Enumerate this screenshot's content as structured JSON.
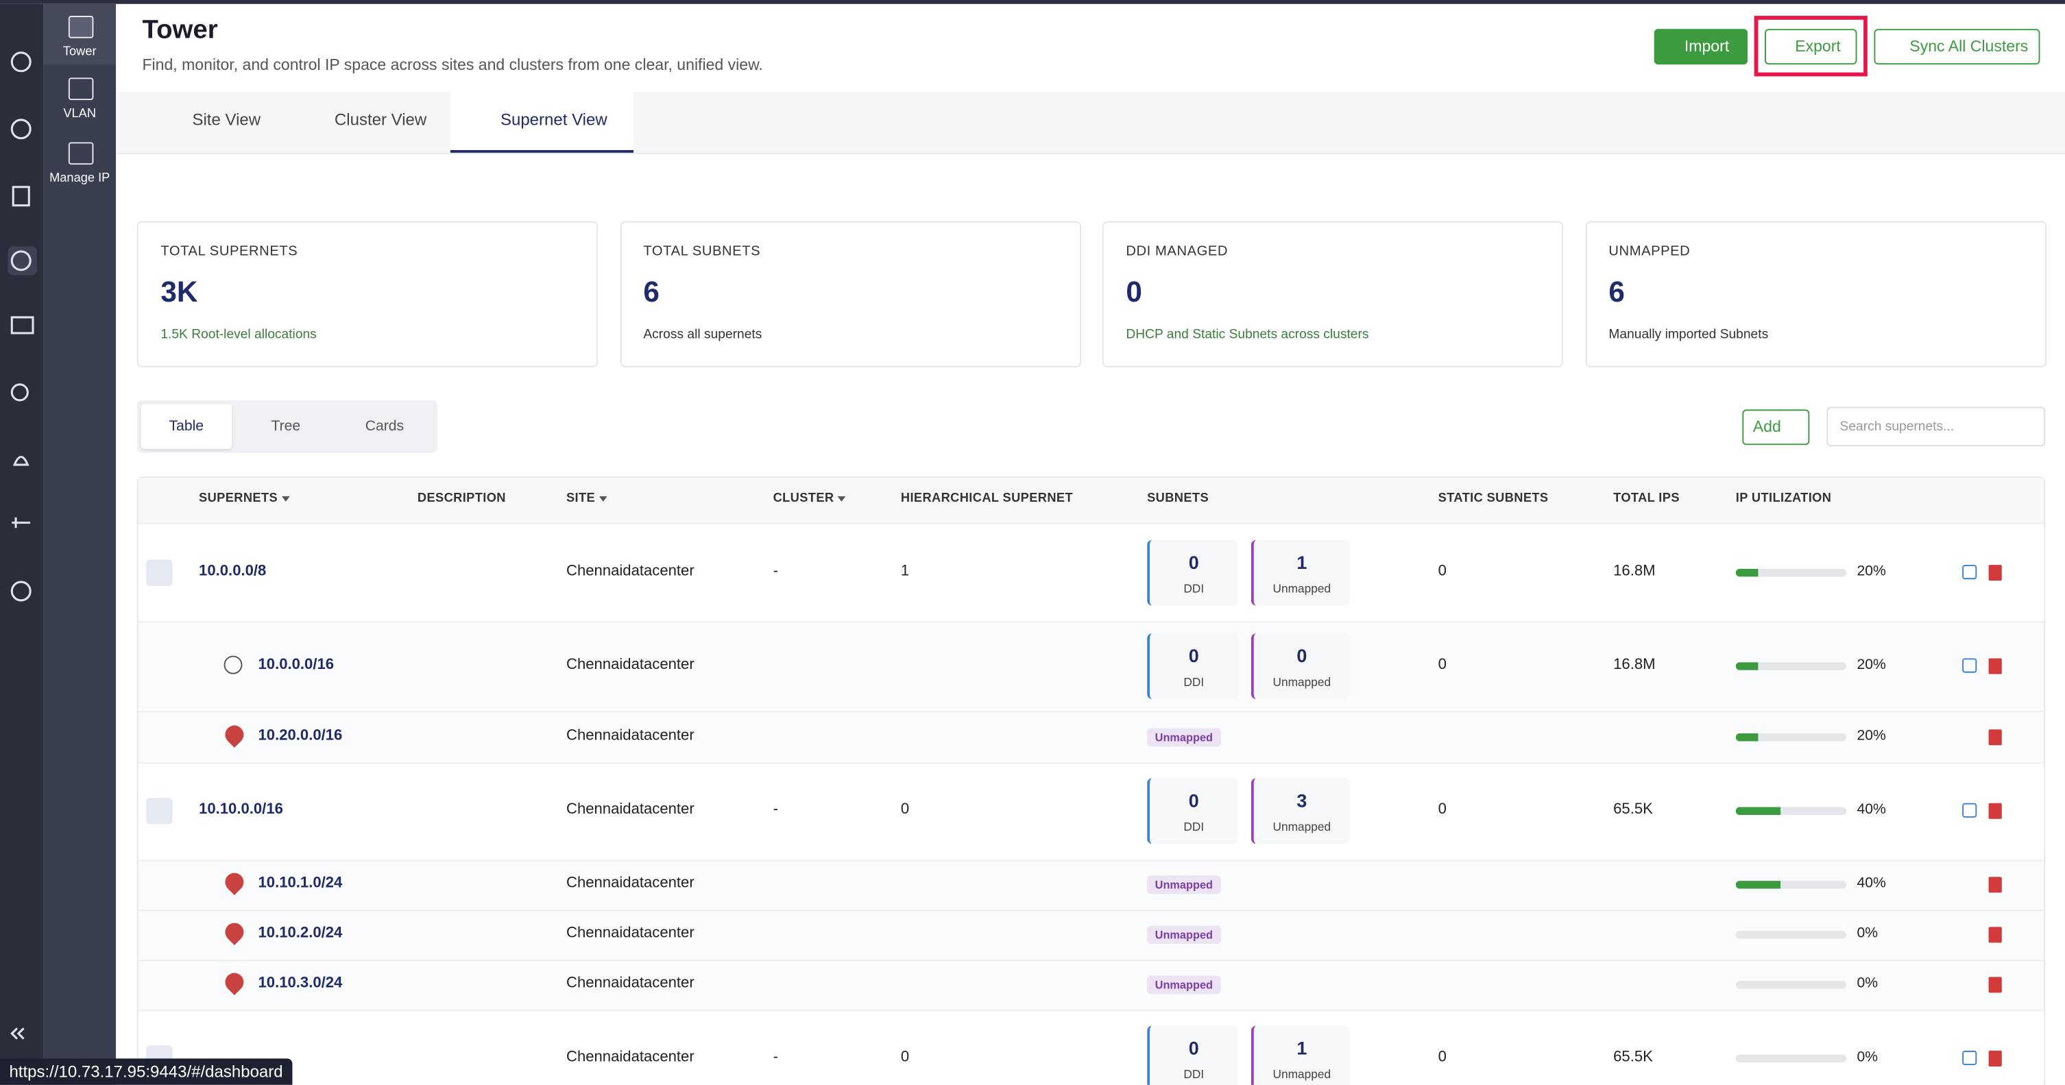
{
  "sidebar": {
    "items": [
      "Tower",
      "VLAN",
      "Manage IP"
    ]
  },
  "header": {
    "title": "Tower",
    "subtitle": "Find, monitor, and control IP space across sites and clusters from one clear, unified view.",
    "buttons": [
      "Import",
      "Export",
      "Sync All Clusters"
    ]
  },
  "tabs": [
    "Site View",
    "Cluster View",
    "Supernet View"
  ],
  "stats": [
    {
      "label": "TOTAL SUPERNETS",
      "value": "3K",
      "note": "1.5K Root-level allocations"
    },
    {
      "label": "TOTAL SUBNETS",
      "value": "6",
      "note": "Across all supernets"
    },
    {
      "label": "DDI MANAGED",
      "value": "0",
      "note": "DHCP and Static Subnets across clusters"
    },
    {
      "label": "UNMAPPED",
      "value": "6",
      "note": "Manually imported Subnets"
    }
  ],
  "view_toggle": [
    "Table",
    "Tree",
    "Cards"
  ],
  "add_button": "Add",
  "search_placeholder": "Search supernets...",
  "table": {
    "columns": [
      "SUPERNETS",
      "DESCRIPTION",
      "SITE",
      "CLUSTER",
      "HIERARCHICAL SUPERNET",
      "SUBNETS",
      "STATIC SUBNETS",
      "TOTAL IPS",
      "IP UTILIZATION"
    ],
    "rows": [
      {
        "kind": "parent",
        "name": "10.0.0.0/8",
        "site": "Chennaidatacenter",
        "cluster": "-",
        "hierarchical": "1",
        "ddi": "0",
        "ddi_label": "DDI",
        "unmapped": "1",
        "unmapped_label": "Unmapped",
        "static": "0",
        "total": "16.8M",
        "utilization": "20%"
      },
      {
        "kind": "child",
        "name": "10.0.0.0/16",
        "site": "Chennaidatacenter",
        "ddi": "0",
        "ddi_label": "DDI",
        "unmapped": "0",
        "unmapped_label": "Unmapped",
        "static": "0",
        "total": "16.8M",
        "utilization": "20%"
      },
      {
        "kind": "ip",
        "name": "10.20.0.0/16",
        "site": "Chennaidatacenter",
        "badge": "Unmapped",
        "utilization": "20%"
      },
      {
        "kind": "parent",
        "name": "10.10.0.0/16",
        "site": "Chennaidatacenter",
        "cluster": "-",
        "hierarchical": "0",
        "ddi": "0",
        "ddi_label": "DDI",
        "unmapped": "3",
        "unmapped_label": "Unmapped",
        "static": "0",
        "total": "65.5K",
        "utilization": "40%"
      },
      {
        "kind": "ip",
        "name": "10.10.1.0/24",
        "site": "Chennaidatacenter",
        "badge": "Unmapped",
        "utilization": "40%"
      },
      {
        "kind": "ip",
        "name": "10.10.2.0/24",
        "site": "Chennaidatacenter",
        "badge": "Unmapped",
        "utilization": "0%"
      },
      {
        "kind": "ip",
        "name": "10.10.3.0/24",
        "site": "Chennaidatacenter",
        "badge": "Unmapped",
        "utilization": "0%"
      },
      {
        "kind": "parent",
        "site": "Chennaidatacenter",
        "cluster": "-",
        "hierarchical": "0",
        "ddi": "0",
        "ddi_label": "DDI",
        "unmapped": "1",
        "unmapped_label": "Unmapped",
        "static": "0",
        "total": "65.5K",
        "utilization": "0%"
      }
    ]
  },
  "status_bar": "https://10.73.17.95:9443/#/dashboard"
}
